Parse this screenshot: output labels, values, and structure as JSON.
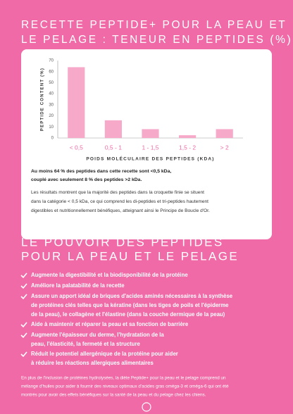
{
  "header": {
    "title": [
      "RECETTE PEPTIDE+ POUR LA PEAU ET",
      "LE PELAGE : TENEUR EN PEPTIDES (%)"
    ]
  },
  "chart_data": {
    "type": "bar",
    "y_label": "PEPTIDE CONTENT (%)",
    "x_label": "POIDS MOLÉCULAIRE DES PEPTIDES (KDA)",
    "categories": [
      "< 0,5",
      "0,5 - 1",
      "1 - 1,5",
      "1,5 - 2",
      "> 2"
    ],
    "values": [
      64,
      16,
      8,
      2.5,
      8
    ],
    "color": "#f7a9c9",
    "ylim": [
      0,
      70
    ],
    "yticks": [
      0,
      10,
      20,
      30,
      40,
      50,
      60,
      70
    ],
    "grid": false
  },
  "summary": {
    "bold": [
      "Au moins 64 % des peptides dans cette recette sont <0,5 kDa,",
      "couplé avec seulement 8 % des peptides >2 kDa."
    ],
    "text": [
      "Les résultats montrent que la majorité des peptides dans la croquette finie se situent",
      "dans la catégorie < 0,5 kDa, ce qui comprend les di-peptides et tri-peptides hautement",
      "digestibles et nutritionnellement bénéfiques, atteignant ainsi le Principe de Boucle d'Or."
    ]
  },
  "section": {
    "title": [
      "LE POUVOIR DES PEPTIDES",
      "POUR LA PEAU ET LE PELAGE"
    ],
    "bullets": [
      [
        "Augmente la digestibilité et la biodisponibilité de la protéine"
      ],
      [
        "Améliore la palatabilité de la recette"
      ],
      [
        "Assure un apport idéal de briques d'acides aminés nécessaires à la synthèse",
        "de protéines clés telles que la kératine (dans les tiges de poils et l'épiderme",
        "de la peau), le collagène et l'élastine (dans la couche dermique de la peau)"
      ],
      [
        "Aide à maintenir et réparer la peau et sa fonction de barrière"
      ],
      [
        "Augmente l'épaisseur du derme, l'hydratation de la",
        "peau, l'élasticité, la fermeté et la structure"
      ],
      [
        "Réduit le potentiel allergénique de la protéine pour aider",
        "à réduire les réactions allergiques alimentaires"
      ]
    ]
  },
  "footer": {
    "text": [
      "En plus de l'inclusion de protéines hydrolysées, la diète Peptide+ pour la peau et le pelage comprend un",
      "mélange d'huiles pour aider à fournir des niveaux optimaux d'acides gras oméga-3 et oméga-6 qui ont été",
      "montrés pour avoir des effets bénéfiques sur la santé de la peau et du pelage chez les chiens."
    ]
  }
}
